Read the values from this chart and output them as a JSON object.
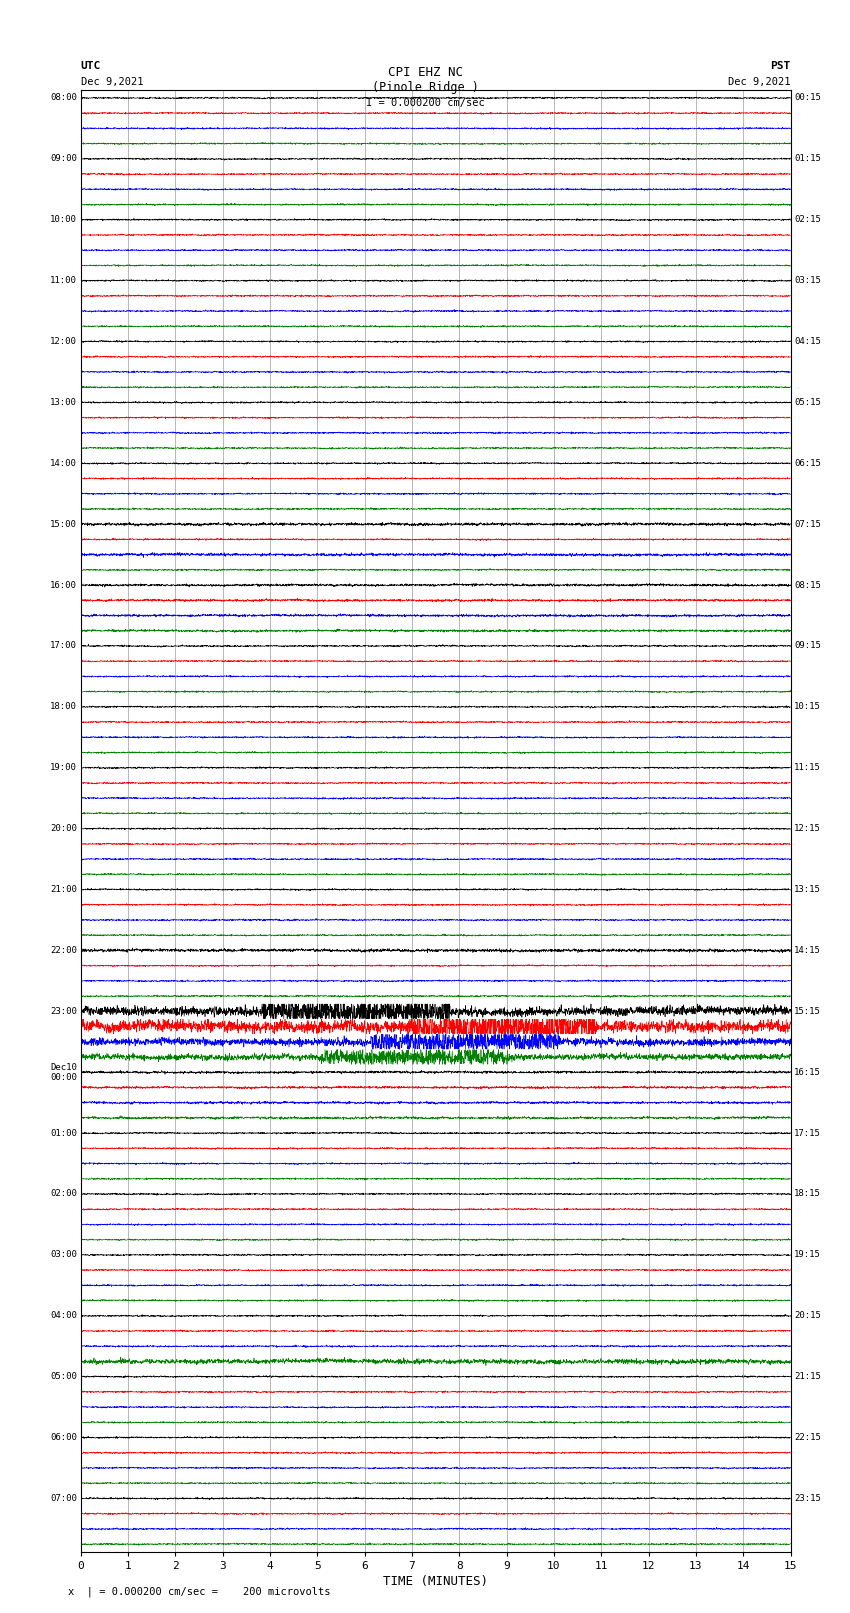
{
  "title_line1": "CPI EHZ NC",
  "title_line2": "(Pinole Ridge )",
  "scale_label": "I = 0.000200 cm/sec",
  "utc_label": "UTC",
  "utc_date": "Dec 9,2021",
  "pst_label": "PST",
  "pst_date": "Dec 9,2021",
  "footer_label": "x  | = 0.000200 cm/sec =    200 microvolts",
  "xlabel": "TIME (MINUTES)",
  "left_times_labeled": [
    [
      "08:00",
      0
    ],
    [
      "09:00",
      4
    ],
    [
      "10:00",
      8
    ],
    [
      "11:00",
      12
    ],
    [
      "12:00",
      16
    ],
    [
      "13:00",
      20
    ],
    [
      "14:00",
      24
    ],
    [
      "15:00",
      28
    ],
    [
      "16:00",
      32
    ],
    [
      "17:00",
      36
    ],
    [
      "18:00",
      40
    ],
    [
      "19:00",
      44
    ],
    [
      "20:00",
      48
    ],
    [
      "21:00",
      52
    ],
    [
      "22:00",
      56
    ],
    [
      "23:00",
      60
    ],
    [
      "Dec10\n00:00",
      64
    ],
    [
      "01:00",
      68
    ],
    [
      "02:00",
      72
    ],
    [
      "03:00",
      76
    ],
    [
      "04:00",
      80
    ],
    [
      "05:00",
      84
    ],
    [
      "06:00",
      88
    ],
    [
      "07:00",
      92
    ]
  ],
  "right_times_labeled": [
    [
      "00:15",
      0
    ],
    [
      "01:15",
      4
    ],
    [
      "02:15",
      8
    ],
    [
      "03:15",
      12
    ],
    [
      "04:15",
      16
    ],
    [
      "05:15",
      20
    ],
    [
      "06:15",
      24
    ],
    [
      "07:15",
      28
    ],
    [
      "08:15",
      32
    ],
    [
      "09:15",
      36
    ],
    [
      "10:15",
      40
    ],
    [
      "11:15",
      44
    ],
    [
      "12:15",
      48
    ],
    [
      "13:15",
      52
    ],
    [
      "14:15",
      56
    ],
    [
      "15:15",
      60
    ],
    [
      "16:15",
      64
    ],
    [
      "17:15",
      68
    ],
    [
      "18:15",
      72
    ],
    [
      "19:15",
      76
    ],
    [
      "20:15",
      80
    ],
    [
      "21:15",
      84
    ],
    [
      "22:15",
      88
    ],
    [
      "23:15",
      92
    ]
  ],
  "colors": [
    "black",
    "red",
    "blue",
    "green"
  ],
  "n_rows": 96,
  "background": "white",
  "noise_amplitude": 0.032,
  "x_min": 0,
  "x_max": 15,
  "x_ticks": [
    0,
    1,
    2,
    3,
    4,
    5,
    6,
    7,
    8,
    9,
    10,
    11,
    12,
    13,
    14,
    15
  ],
  "seismic_event_row": 60,
  "seismic_event_row2": 61,
  "seismic_event_row3": 62
}
